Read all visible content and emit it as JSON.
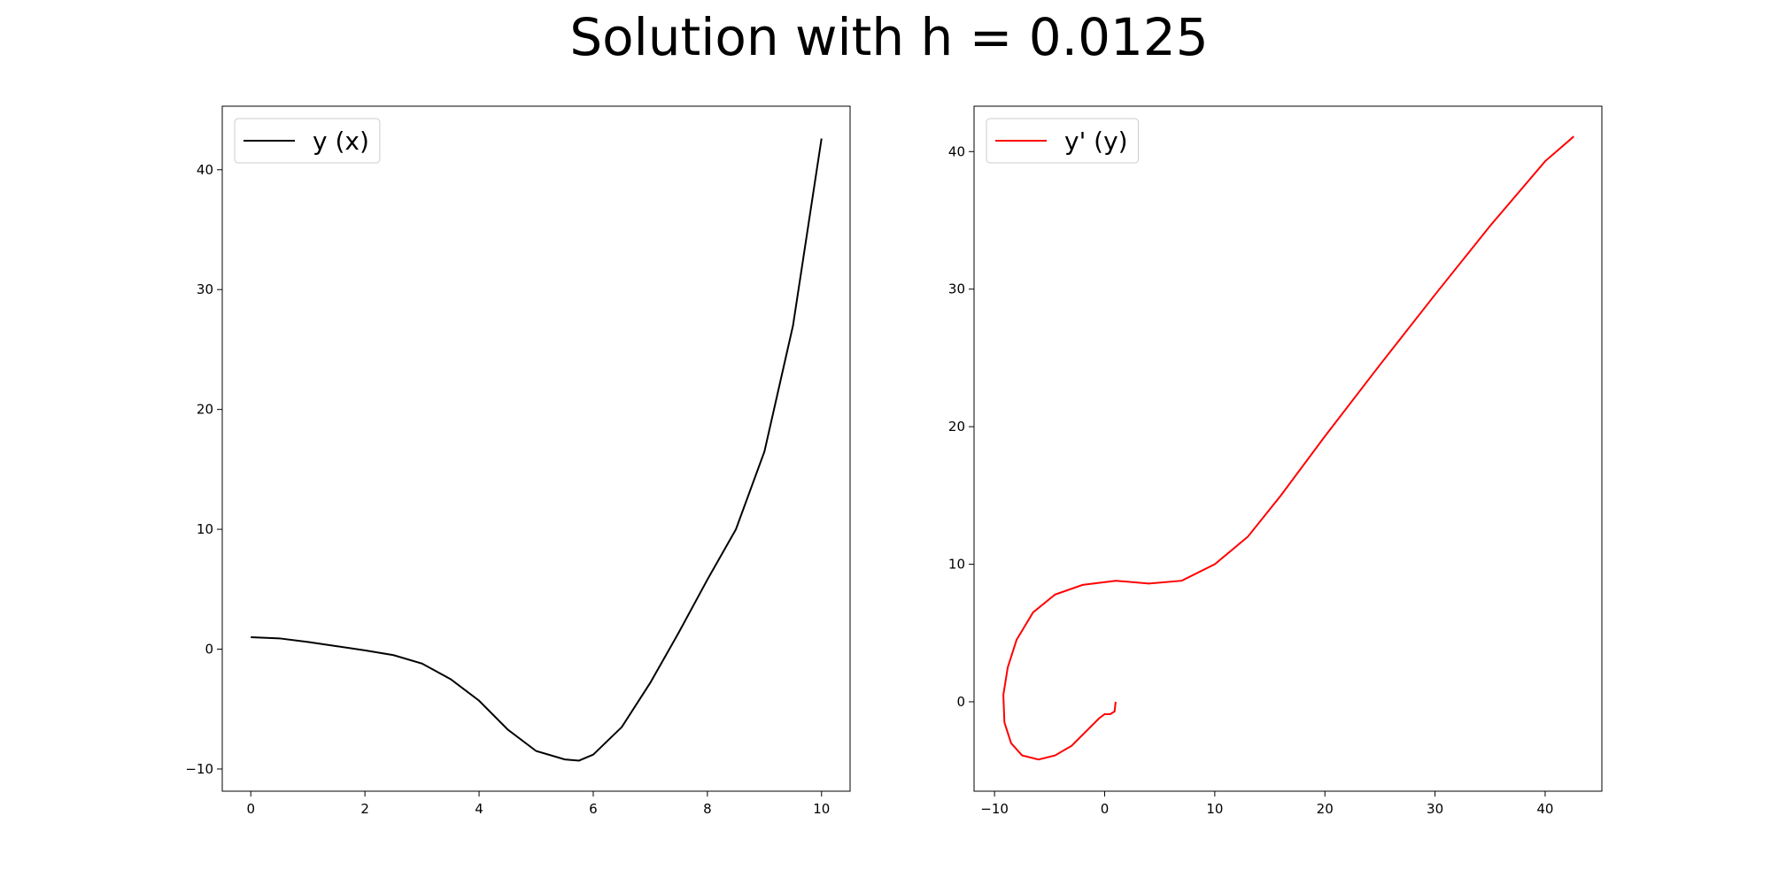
{
  "title": "Solution with h = 0.0125",
  "chart_data": [
    {
      "type": "line",
      "x": [
        0,
        0.5,
        1,
        1.5,
        2,
        2.5,
        3,
        3.5,
        4,
        4.5,
        5,
        5.5,
        5.75,
        6,
        6.5,
        7,
        7.5,
        8,
        8.5,
        9,
        9.5,
        10
      ],
      "series": [
        {
          "name": "y (x)",
          "color": "#000000",
          "values": [
            1.0,
            0.9,
            0.6,
            0.25,
            -0.1,
            -0.5,
            -1.2,
            -2.5,
            -4.3,
            -6.7,
            -8.5,
            -9.2,
            -9.3,
            -8.8,
            -6.5,
            -2.8,
            1.4,
            5.8,
            10,
            16.5,
            27,
            42.6
          ]
        }
      ],
      "xlim": [
        -0.5,
        10.5
      ],
      "ylim": [
        -11.85,
        45.3
      ],
      "xticks": [
        0,
        2,
        4,
        6,
        8,
        10
      ],
      "yticks": [
        {
          "value": -10,
          "label": "−10"
        },
        0,
        10,
        20,
        30,
        40
      ],
      "legend": "upper left"
    },
    {
      "type": "line",
      "x": [
        1.0,
        0.9,
        0.5,
        0,
        -0.5,
        -1.5,
        -3,
        -4.5,
        -6,
        -7.5,
        -8.5,
        -9.1,
        -9.2,
        -8.8,
        -8,
        -6.5,
        -4.5,
        -2,
        1,
        4,
        7,
        10,
        13,
        16,
        20,
        25,
        30,
        35,
        40,
        42.6
      ],
      "series": [
        {
          "name": "y' (y)",
          "color": "#ff0000",
          "values": [
            0.0,
            -0.7,
            -0.9,
            -0.9,
            -1.2,
            -2.0,
            -3.2,
            -3.9,
            -4.2,
            -3.9,
            -3.0,
            -1.5,
            0.5,
            2.5,
            4.5,
            6.5,
            7.8,
            8.5,
            8.8,
            8.6,
            8.8,
            10,
            12,
            15,
            19.3,
            24.5,
            29.6,
            34.6,
            39.3,
            41.1
          ]
        }
      ],
      "xlim": [
        -11.86,
        45.15
      ],
      "ylim": [
        -6.5,
        43.3
      ],
      "xticks": [
        {
          "value": -10,
          "label": "−10"
        },
        0,
        10,
        20,
        30,
        40
      ],
      "yticks": [
        0,
        10,
        20,
        30,
        40
      ],
      "legend": "upper left"
    }
  ]
}
